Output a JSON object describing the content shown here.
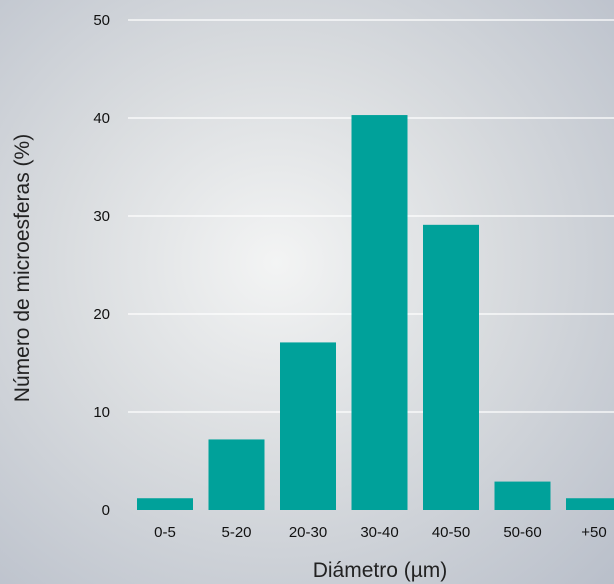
{
  "chart_data": {
    "type": "bar",
    "title": "",
    "xlabel": "Diámetro (µm)",
    "ylabel": "Número de microesferas (%)",
    "categories": [
      "0-5",
      "5-20",
      "20-30",
      "30-40",
      "40-50",
      "50-60",
      "+50"
    ],
    "values": [
      1.2,
      7.2,
      17.1,
      40.3,
      29.1,
      2.9,
      1.2
    ],
    "ylim": [
      0,
      50
    ],
    "yticks": [
      "0",
      "10",
      "20",
      "30",
      "40",
      "50"
    ],
    "grid": true,
    "bar_color": "#00a19a",
    "gridline_color": "#ffffff"
  }
}
